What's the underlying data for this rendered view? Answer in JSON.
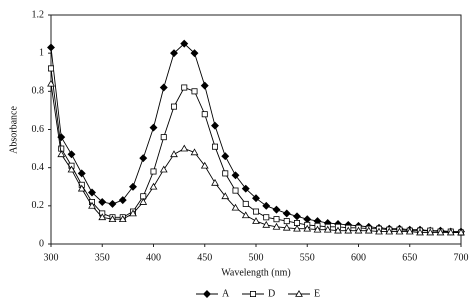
{
  "chart_data": {
    "type": "line",
    "x_label": "Wavelength (nm)",
    "y_label": "Absorbance",
    "x": [
      300,
      310,
      320,
      330,
      340,
      350,
      360,
      370,
      380,
      390,
      400,
      410,
      420,
      430,
      440,
      450,
      460,
      470,
      480,
      490,
      500,
      510,
      520,
      530,
      540,
      550,
      560,
      570,
      580,
      590,
      600,
      610,
      620,
      630,
      640,
      650,
      660,
      670,
      680,
      690,
      700
    ],
    "series": [
      {
        "name": "A",
        "color": "#000000",
        "marker": "diamond",
        "filled": true,
        "values": [
          1.03,
          0.56,
          0.47,
          0.37,
          0.27,
          0.22,
          0.21,
          0.23,
          0.3,
          0.45,
          0.61,
          0.82,
          1.0,
          1.05,
          1.0,
          0.83,
          0.62,
          0.46,
          0.36,
          0.29,
          0.24,
          0.2,
          0.18,
          0.16,
          0.145,
          0.13,
          0.12,
          0.11,
          0.105,
          0.1,
          0.095,
          0.09,
          0.085,
          0.08,
          0.08,
          0.075,
          0.075,
          0.07,
          0.07,
          0.065,
          0.065
        ]
      },
      {
        "name": "D",
        "color": "#000000",
        "marker": "square",
        "filled": false,
        "values": [
          0.92,
          0.5,
          0.41,
          0.31,
          0.22,
          0.16,
          0.14,
          0.14,
          0.17,
          0.25,
          0.38,
          0.56,
          0.72,
          0.82,
          0.8,
          0.68,
          0.51,
          0.37,
          0.28,
          0.21,
          0.17,
          0.14,
          0.13,
          0.12,
          0.11,
          0.1,
          0.095,
          0.09,
          0.09,
          0.085,
          0.085,
          0.08,
          0.08,
          0.075,
          0.075,
          0.07,
          0.07,
          0.07,
          0.065,
          0.065,
          0.06
        ]
      },
      {
        "name": "E",
        "color": "#000000",
        "marker": "triangle",
        "filled": false,
        "values": [
          0.84,
          0.47,
          0.39,
          0.29,
          0.2,
          0.14,
          0.13,
          0.13,
          0.16,
          0.22,
          0.3,
          0.39,
          0.47,
          0.5,
          0.48,
          0.41,
          0.32,
          0.25,
          0.19,
          0.15,
          0.12,
          0.1,
          0.09,
          0.085,
          0.08,
          0.08,
          0.075,
          0.075,
          0.07,
          0.07,
          0.07,
          0.07,
          0.065,
          0.065,
          0.065,
          0.065,
          0.06,
          0.06,
          0.06,
          0.06,
          0.06
        ]
      }
    ],
    "xlim": [
      300,
      700
    ],
    "xticks": [
      300,
      350,
      400,
      450,
      500,
      550,
      600,
      650,
      700
    ],
    "ylim": [
      0,
      1.2
    ],
    "yticks": [
      0,
      0.2,
      0.4,
      0.6,
      0.8,
      1,
      1.2
    ],
    "grid": false,
    "legend": "bottom"
  }
}
